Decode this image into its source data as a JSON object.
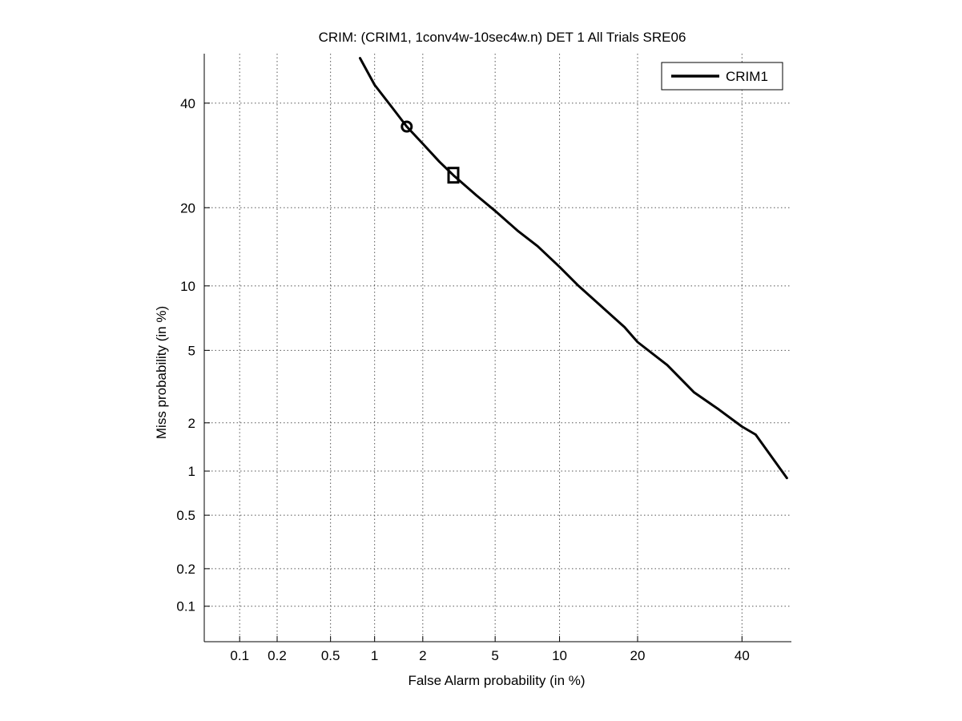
{
  "chart_data": {
    "type": "line",
    "title": "CRIM: (CRIM1, 1conv4w-10sec4w.n) DET 1 All Trials SRE06",
    "xlabel": "False Alarm probability (in %)",
    "ylabel": "Miss probability (in %)",
    "x_scale": "probit",
    "y_scale": "probit",
    "xlim": [
      0.05,
      51
    ],
    "ylim": [
      0.05,
      51
    ],
    "x_ticks": [
      0.1,
      0.2,
      0.5,
      1,
      2,
      5,
      10,
      20,
      40
    ],
    "x_tick_labels": [
      "0.1",
      "0.2",
      "0.5",
      "1",
      "2",
      "5",
      "10",
      "20",
      "40"
    ],
    "y_ticks": [
      0.1,
      0.2,
      0.5,
      1,
      2,
      5,
      10,
      20,
      40
    ],
    "y_tick_labels": [
      "0.1",
      "0.2",
      "0.5",
      "1",
      "2",
      "5",
      "10",
      "20",
      "40"
    ],
    "grid": true,
    "legend_position": "top-right",
    "series": [
      {
        "name": "CRIM1",
        "color": "#000000",
        "x": [
          0.8,
          1.0,
          1.3,
          1.6,
          2.0,
          2.5,
          3.0,
          4.0,
          5.0,
          6.5,
          8.0,
          10.0,
          12.0,
          15.0,
          18.0,
          20.0,
          25.0,
          30.0,
          35.0,
          40.0,
          43.0,
          46.0,
          50.0
        ],
        "y": [
          50.0,
          44.0,
          39.0,
          35.0,
          31.5,
          28.0,
          25.5,
          22.0,
          19.5,
          16.5,
          14.5,
          12.0,
          10.0,
          8.0,
          6.5,
          5.5,
          4.2,
          3.0,
          2.4,
          1.9,
          1.7,
          1.3,
          0.9
        ]
      }
    ],
    "markers": [
      {
        "shape": "circle",
        "x": 1.6,
        "y": 35.0
      },
      {
        "shape": "square",
        "x": 3.0,
        "y": 25.5
      }
    ]
  }
}
